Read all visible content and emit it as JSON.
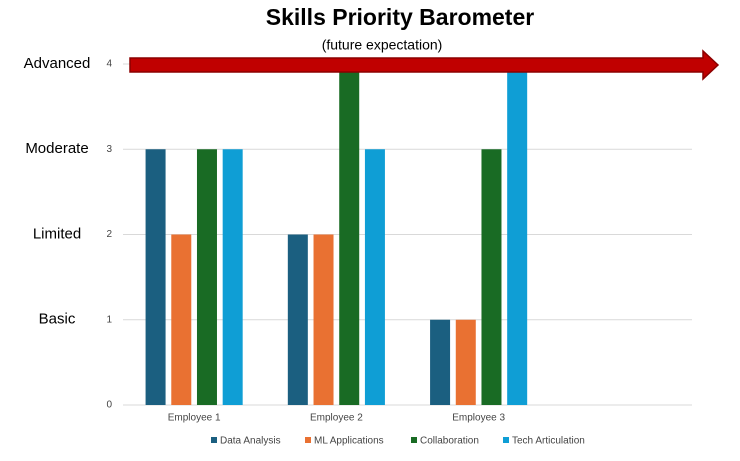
{
  "chart_data": {
    "type": "bar",
    "title": "Skills Priority Barometer",
    "subtitle": "(future expectation)",
    "categories": [
      "Employee 1",
      "Employee 2",
      "Employee 3"
    ],
    "series": [
      {
        "name": "Data Analysis",
        "color": "#1b5f80",
        "values": [
          3,
          2,
          1
        ]
      },
      {
        "name": "ML Applications",
        "color": "#e97132",
        "values": [
          2,
          2,
          1
        ]
      },
      {
        "name": "Collaboration",
        "color": "#196b24",
        "values": [
          3,
          4,
          3
        ]
      },
      {
        "name": "Tech Articulation",
        "color": "#0f9ed5",
        "values": [
          3,
          3,
          4
        ]
      }
    ],
    "ylim": [
      0,
      4
    ],
    "yticks": [
      0,
      1,
      2,
      3,
      4
    ],
    "grid": true,
    "level_labels": [
      {
        "value": 4,
        "label": "Advanced"
      },
      {
        "value": 3,
        "label": "Moderate"
      },
      {
        "value": 2,
        "label": "Limited"
      },
      {
        "value": 1,
        "label": "Basic"
      }
    ],
    "legend": "bottom"
  }
}
